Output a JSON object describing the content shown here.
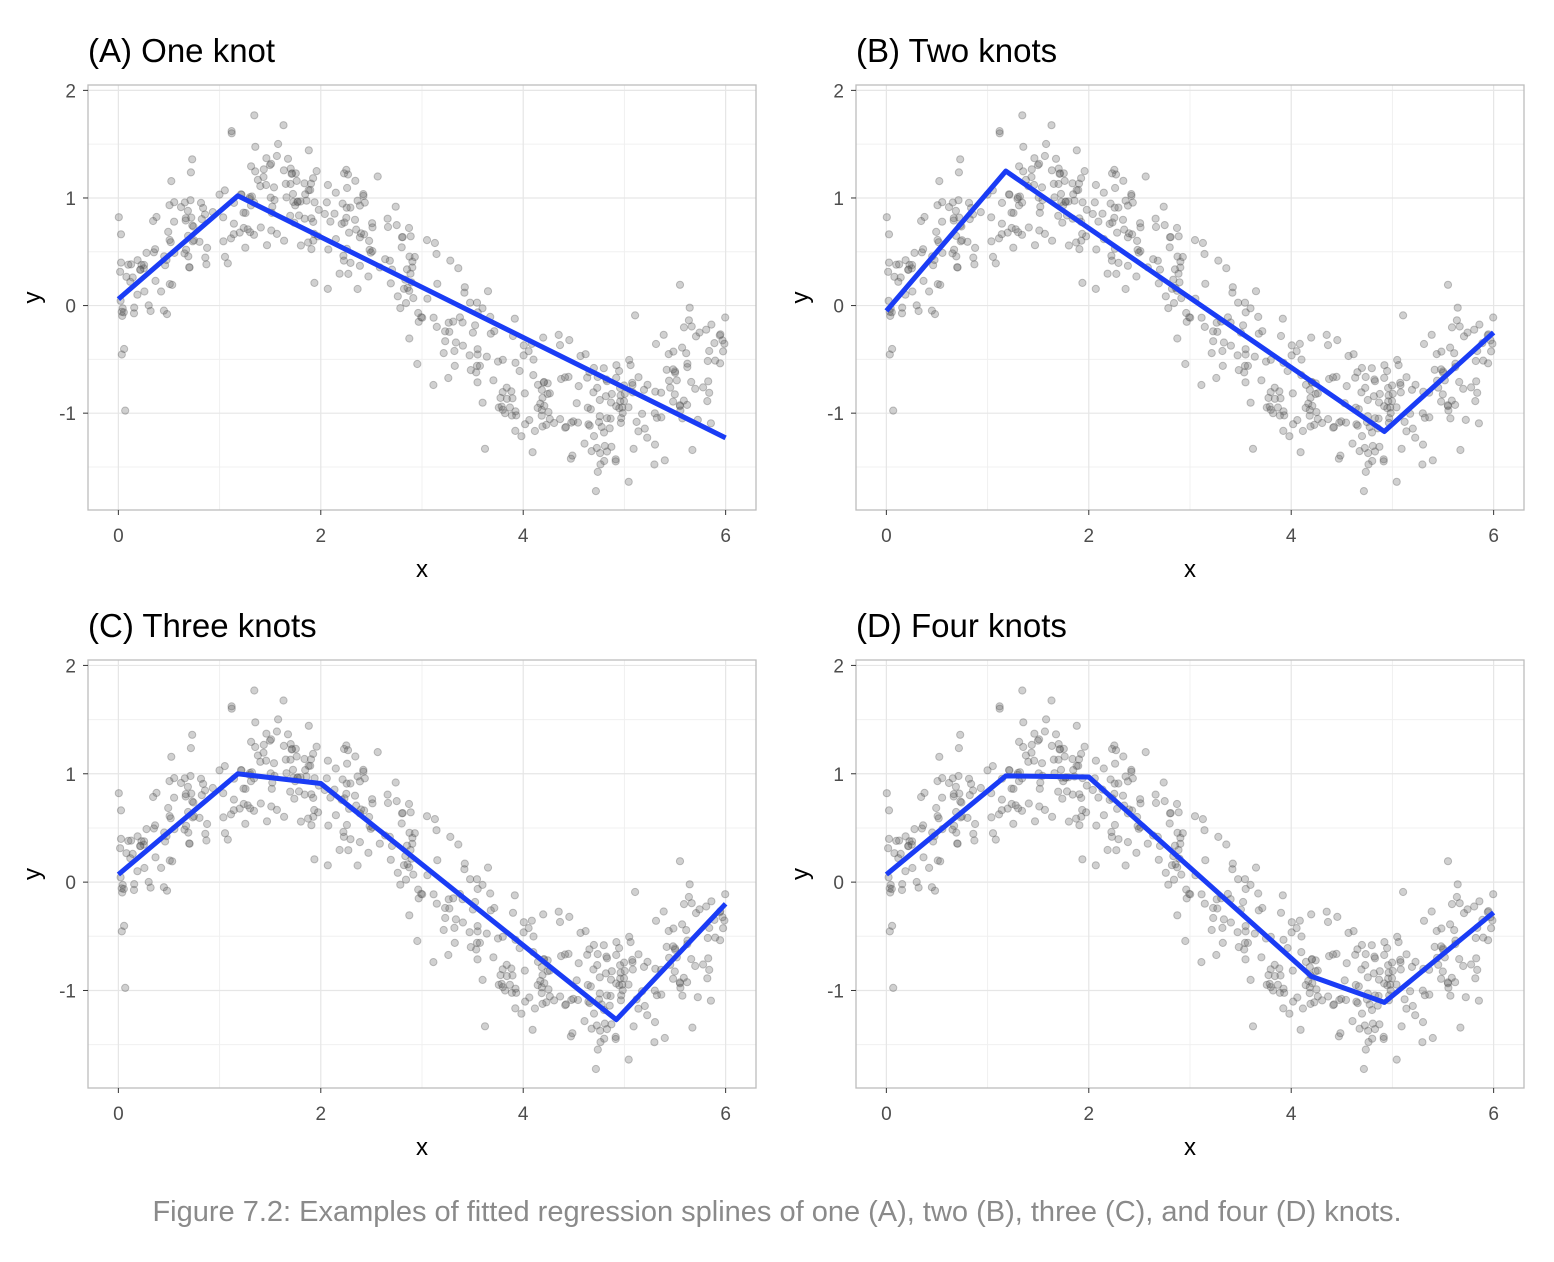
{
  "caption": "Figure 7.2: Examples of fitted regression splines of one (A), two (B), three (C), and four (D) knots.",
  "colors": {
    "line": "#1a3cf5",
    "points": "#555555",
    "grid": "#e6e6e6",
    "border": "#bdbdbd"
  },
  "chart_data": [
    {
      "type": "line",
      "title": "(A) One knot",
      "xlabel": "x",
      "ylabel": "y",
      "xlim": [
        -0.3,
        6.3
      ],
      "ylim": [
        -1.9,
        2.05
      ],
      "xticks": [
        0,
        2,
        4,
        6
      ],
      "yticks": [
        -1,
        0,
        1,
        2
      ],
      "grid": true,
      "series": [
        {
          "x": [
            0,
            1.18,
            6.0
          ],
          "y": [
            0.06,
            1.02,
            -1.23
          ]
        }
      ],
      "scatter_note": "noisy sin(x) observations, ~500 points"
    },
    {
      "type": "line",
      "title": "(B) Two knots",
      "xlabel": "x",
      "ylabel": "y",
      "xlim": [
        -0.3,
        6.3
      ],
      "ylim": [
        -1.9,
        2.05
      ],
      "xticks": [
        0,
        2,
        4,
        6
      ],
      "yticks": [
        -1,
        0,
        1,
        2
      ],
      "grid": true,
      "series": [
        {
          "x": [
            0,
            1.18,
            4.92,
            6.0
          ],
          "y": [
            -0.05,
            1.25,
            -1.17,
            -0.25
          ]
        }
      ]
    },
    {
      "type": "line",
      "title": "(C) Three knots",
      "xlabel": "x",
      "ylabel": "y",
      "xlim": [
        -0.3,
        6.3
      ],
      "ylim": [
        -1.9,
        2.05
      ],
      "xticks": [
        0,
        2,
        4,
        6
      ],
      "yticks": [
        -1,
        0,
        1,
        2
      ],
      "grid": true,
      "series": [
        {
          "x": [
            0,
            1.18,
            2.0,
            4.92,
            6.0
          ],
          "y": [
            0.07,
            1.0,
            0.91,
            -1.27,
            -0.2
          ]
        }
      ]
    },
    {
      "type": "line",
      "title": "(D) Four knots",
      "xlabel": "x",
      "ylabel": "y",
      "xlim": [
        -0.3,
        6.3
      ],
      "ylim": [
        -1.9,
        2.05
      ],
      "xticks": [
        0,
        2,
        4,
        6
      ],
      "yticks": [
        -1,
        0,
        1,
        2
      ],
      "grid": true,
      "series": [
        {
          "x": [
            0,
            1.18,
            2.0,
            4.2,
            4.92,
            6.0
          ],
          "y": [
            0.07,
            0.98,
            0.97,
            -0.87,
            -1.11,
            -0.28
          ]
        }
      ]
    }
  ]
}
